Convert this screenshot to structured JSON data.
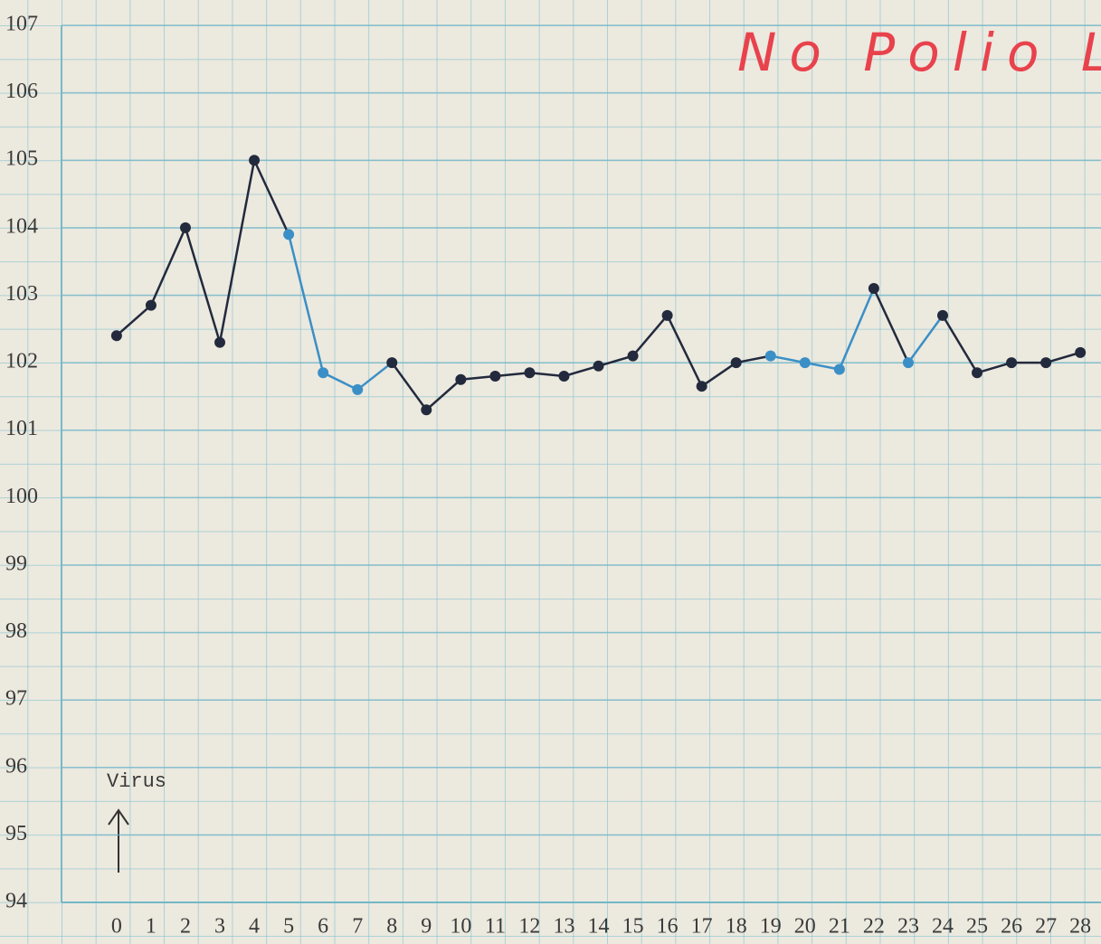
{
  "chart_data": {
    "type": "line",
    "title": "No Polio L",
    "annotations": [
      "Virus"
    ],
    "x": [
      0,
      1,
      2,
      3,
      4,
      5,
      6,
      7,
      8,
      9,
      10,
      11,
      12,
      13,
      14,
      15,
      16,
      17,
      18,
      19,
      20,
      21,
      22,
      23,
      24,
      25,
      26,
      27,
      28
    ],
    "series": [
      {
        "color": "#232a3d",
        "values": [
          102.4,
          102.85,
          104.0,
          102.3,
          105.0,
          103.9,
          101.85,
          101.6,
          102.0,
          101.3,
          101.75,
          101.8,
          101.85,
          101.8,
          101.95,
          102.1,
          102.7,
          101.65,
          102.0,
          102.1,
          102.0,
          101.9,
          103.1,
          102.0,
          102.7,
          101.85,
          102.0,
          102.0,
          102.15
        ],
        "point_colors": [
          "#232a3d",
          "#232a3d",
          "#232a3d",
          "#232a3d",
          "#232a3d",
          "#3b8fc6",
          "#3b8fc6",
          "#3b8fc6",
          "#232a3d",
          "#232a3d",
          "#232a3d",
          "#232a3d",
          "#232a3d",
          "#232a3d",
          "#232a3d",
          "#232a3d",
          "#232a3d",
          "#232a3d",
          "#232a3d",
          "#3b8fc6",
          "#3b8fc6",
          "#3b8fc6",
          "#232a3d",
          "#3b8fc6",
          "#232a3d",
          "#232a3d",
          "#232a3d",
          "#232a3d",
          "#232a3d"
        ]
      }
    ],
    "xlim": [
      -1.6,
      28.6
    ],
    "xticks": [
      0,
      1,
      2,
      3,
      4,
      5,
      6,
      7,
      8,
      9,
      10,
      11,
      12,
      13,
      14,
      15,
      16,
      17,
      18,
      19,
      20,
      21,
      22,
      23,
      24,
      25,
      26,
      27,
      28
    ],
    "ylim": [
      94,
      107
    ],
    "yticks": [
      94,
      95,
      96,
      97,
      98,
      99,
      100,
      101,
      102,
      103,
      104,
      105,
      106,
      107
    ],
    "grid": true
  }
}
